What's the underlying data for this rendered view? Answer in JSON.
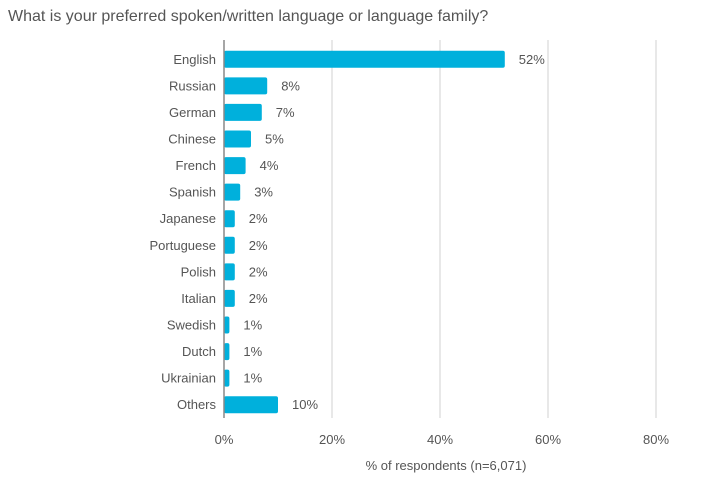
{
  "chart_data": {
    "type": "bar",
    "orientation": "horizontal",
    "title": "What is your preferred spoken/written language or language family?",
    "xlabel": "% of respondents (n=6,071)",
    "ylabel": "",
    "categories": [
      "English",
      "Russian",
      "German",
      "Chinese",
      "French",
      "Spanish",
      "Japanese",
      "Portuguese",
      "Polish",
      "Italian",
      "Swedish",
      "Dutch",
      "Ukrainian",
      "Others"
    ],
    "values": [
      52,
      8,
      7,
      5,
      4,
      3,
      2,
      2,
      2,
      2,
      1,
      1,
      1,
      10
    ],
    "value_labels": [
      "52%",
      "8%",
      "7%",
      "5%",
      "4%",
      "3%",
      "2%",
      "2%",
      "2%",
      "2%",
      "1%",
      "1%",
      "1%",
      "10%"
    ],
    "xlim": [
      0,
      80
    ],
    "xticks": [
      0,
      20,
      40,
      60,
      80
    ],
    "xtick_labels": [
      "0%",
      "20%",
      "40%",
      "60%",
      "80%"
    ],
    "grid": "vertical",
    "bar_color": "#00b0dc",
    "grid_color": "#d0d0d0",
    "axis_color": "#888888",
    "text_color": "#555555"
  }
}
